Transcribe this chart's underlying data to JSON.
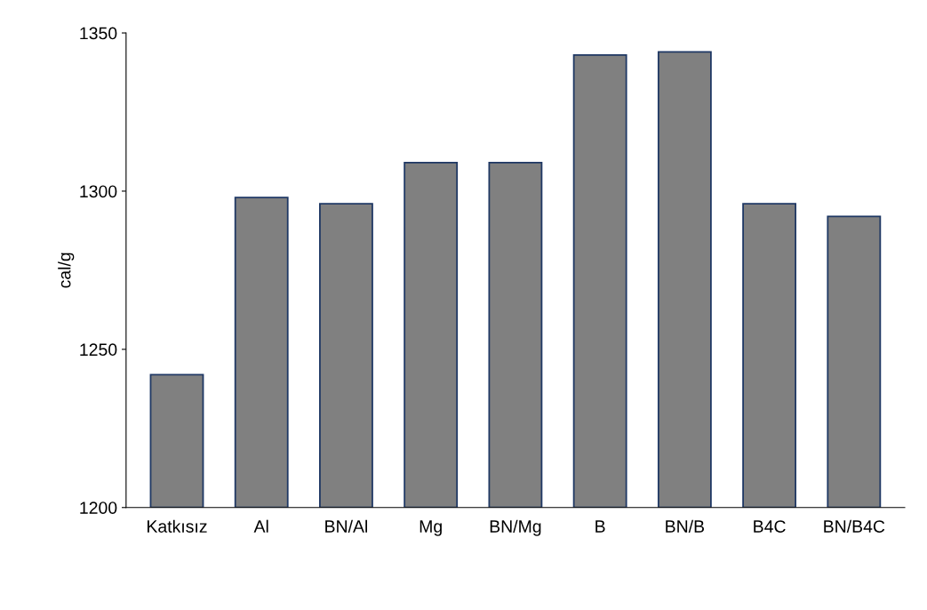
{
  "chart_data": {
    "type": "bar",
    "ylabel": "cal/g",
    "categories": [
      "Katkısız",
      "Al",
      "BN/Al",
      "Mg",
      "BN/Mg",
      "B",
      "BN/B",
      "B4C",
      "BN/B4C"
    ],
    "values": [
      1242,
      1298,
      1296,
      1309,
      1309,
      1343,
      1344,
      1296,
      1292
    ],
    "color": "#808080",
    "ylim": [
      1200,
      1350
    ],
    "yticks": [
      1200,
      1250,
      1300,
      1350
    ],
    "grid": false
  }
}
